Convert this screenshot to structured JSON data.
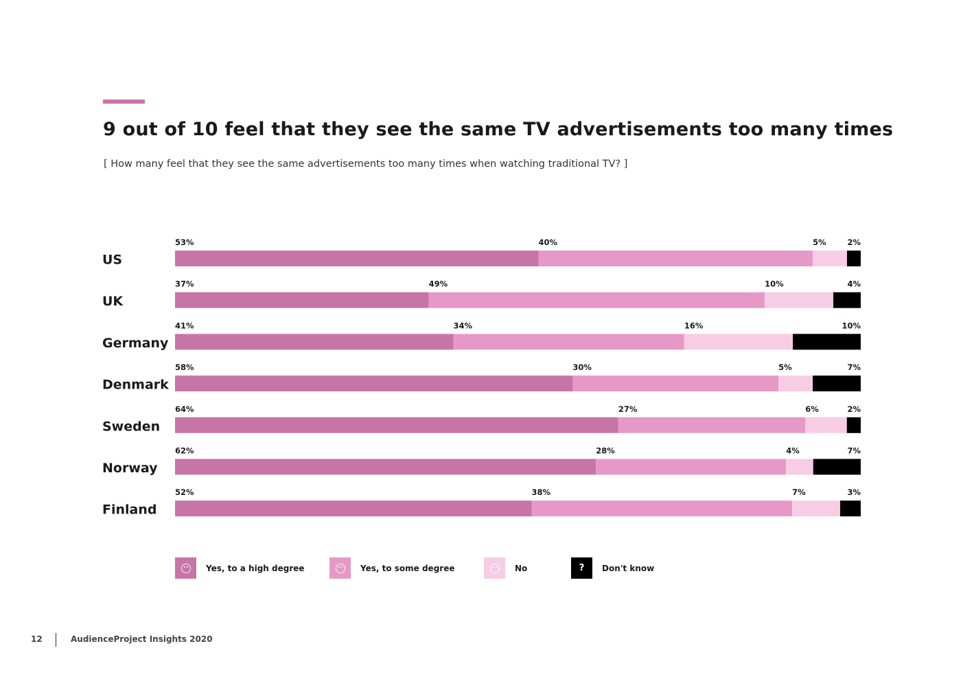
{
  "header": {
    "title": "9 out of 10 feel that they see the same TV advertisements too many times",
    "subtitle": "[ How many feel that they see the same advertisements too many times when watching traditional TV? ]"
  },
  "chart_data": {
    "type": "bar",
    "orientation": "horizontal",
    "stacked": true,
    "categories": [
      "US",
      "UK",
      "Germany",
      "Denmark",
      "Sweden",
      "Norway",
      "Finland"
    ],
    "series": [
      {
        "name": "Yes, to a high degree",
        "color": "#c775a7",
        "values": [
          53,
          37,
          41,
          58,
          64,
          62,
          52
        ]
      },
      {
        "name": "Yes, to some degree",
        "color": "#e699c6",
        "values": [
          40,
          49,
          34,
          30,
          27,
          28,
          38
        ]
      },
      {
        "name": "No",
        "color": "#f7cce5",
        "values": [
          5,
          10,
          16,
          5,
          6,
          4,
          7
        ]
      },
      {
        "name": "Don't know",
        "color": "#000000",
        "values": [
          2,
          4,
          10,
          7,
          2,
          7,
          3
        ]
      }
    ],
    "unit": "%",
    "legend_position": "bottom"
  },
  "legend": {
    "items": [
      {
        "label": "Yes, to a high degree",
        "icon": "sad-face-icon",
        "color": "#c775a7"
      },
      {
        "label": "Yes, to some degree",
        "icon": "smile-face-icon",
        "color": "#e699c6"
      },
      {
        "label": "No",
        "icon": "happy-face-icon",
        "color": "#f7cce5"
      },
      {
        "label": "Don't know",
        "icon": "question-icon",
        "color": "#000000",
        "symbol": "?"
      }
    ]
  },
  "footer": {
    "page_number": "12",
    "publication": "AudienceProject Insights 2020"
  }
}
